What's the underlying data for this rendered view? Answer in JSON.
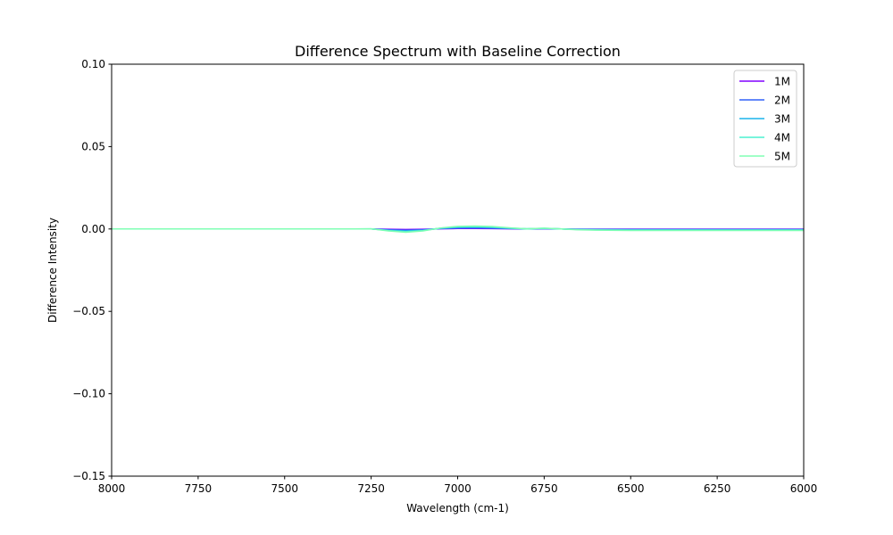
{
  "chart_data": {
    "type": "line",
    "title": "Difference Spectrum with Baseline Correction",
    "xlabel": "Wavelength (cm-1)",
    "ylabel": "Difference Intensity",
    "xlim": [
      8000,
      6000
    ],
    "ylim": [
      -0.15,
      0.1
    ],
    "x_inverted": true,
    "xticks": [
      8000,
      7750,
      7500,
      7250,
      7000,
      6750,
      6500,
      6250,
      6000
    ],
    "xtick_labels": [
      "8000",
      "7750",
      "7500",
      "7250",
      "7000",
      "6750",
      "6500",
      "6250",
      "6000"
    ],
    "yticks": [
      -0.15,
      -0.1,
      -0.05,
      0.0,
      0.05,
      0.1
    ],
    "ytick_labels": [
      "−0.15",
      "−0.10",
      "−0.05",
      "0.00",
      "0.05",
      "0.10"
    ],
    "grid": false,
    "legend_position": "top-right",
    "x": [
      8000,
      7750,
      7500,
      7300,
      7250,
      7200,
      7150,
      7100,
      7050,
      7000,
      6950,
      6900,
      6850,
      6800,
      6750,
      6700,
      6650,
      6600,
      6500,
      6250,
      6000
    ],
    "series": [
      {
        "name": "1M",
        "color": "#8000ff",
        "values": [
          0.0,
          0.0,
          0.0,
          0.0,
          0.0,
          -0.0002,
          -0.0003,
          -0.0002,
          0.0001,
          0.0003,
          0.0003,
          0.0002,
          0.0001,
          0.0,
          0.0001,
          0.0,
          -0.0001,
          -0.0001,
          -0.0001,
          -0.0001,
          -0.0001
        ]
      },
      {
        "name": "2M",
        "color": "#3061f8",
        "values": [
          0.0,
          0.0,
          0.0,
          0.0,
          0.0,
          -0.0005,
          -0.0008,
          -0.0005,
          0.0002,
          0.0006,
          0.0007,
          0.0005,
          0.0002,
          0.0,
          0.0002,
          0.0,
          -0.0002,
          -0.0003,
          -0.0003,
          -0.0003,
          -0.0003
        ]
      },
      {
        "name": "3M",
        "color": "#1ab3ec",
        "values": [
          0.0,
          0.0,
          0.0,
          0.0,
          0.0,
          -0.0008,
          -0.0012,
          -0.0007,
          0.0004,
          0.001,
          0.0011,
          0.0009,
          0.0004,
          0.0001,
          0.0003,
          0.0,
          -0.0003,
          -0.0004,
          -0.0005,
          -0.0005,
          -0.0005
        ]
      },
      {
        "name": "4M",
        "color": "#4cf0d0",
        "values": [
          0.0,
          0.0,
          0.0,
          0.0,
          0.0001,
          -0.001,
          -0.0016,
          -0.001,
          0.0005,
          0.0013,
          0.0015,
          0.0012,
          0.0006,
          0.0001,
          0.0004,
          0.0,
          -0.0004,
          -0.0006,
          -0.0007,
          -0.0007,
          -0.0007
        ]
      },
      {
        "name": "5M",
        "color": "#80ffb4",
        "values": [
          0.0,
          0.0,
          0.0,
          0.0,
          0.0001,
          -0.0012,
          -0.002,
          -0.0012,
          0.0006,
          0.0016,
          0.0018,
          0.0015,
          0.0007,
          0.0001,
          0.0005,
          0.0,
          -0.0005,
          -0.0007,
          -0.0009,
          -0.0009,
          -0.0009
        ]
      }
    ]
  }
}
